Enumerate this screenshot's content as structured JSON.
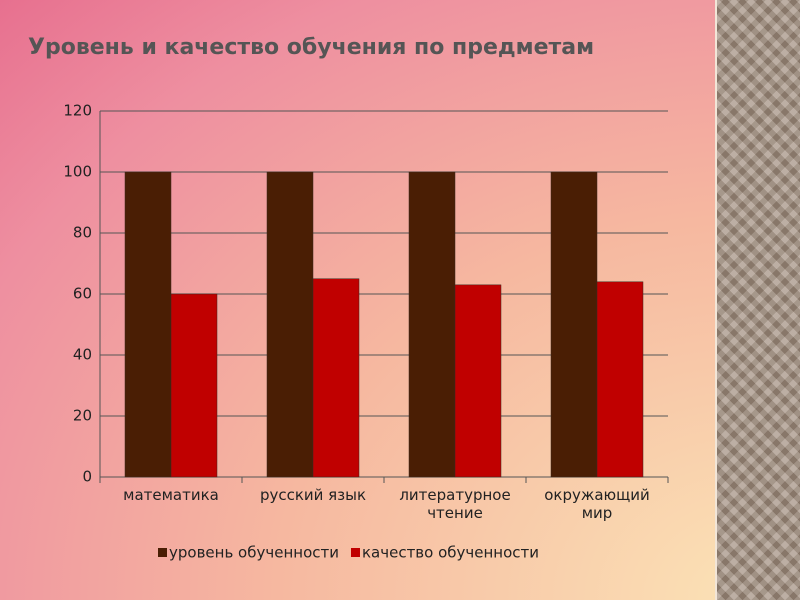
{
  "chart_data": {
    "type": "bar",
    "title": "Уровень и качество обучения по предметам",
    "categories": [
      "математика",
      "русский язык",
      "литературное чтение",
      "окружающий мир"
    ],
    "series": [
      {
        "name": "уровень обученности",
        "color": "#4a1e04",
        "values": [
          100,
          100,
          100,
          100
        ]
      },
      {
        "name": "качество обученности",
        "color": "#c00000",
        "values": [
          60,
          65,
          63,
          64
        ]
      }
    ],
    "ylim": [
      0,
      120
    ],
    "yticks": [
      0,
      20,
      40,
      60,
      80,
      100,
      120
    ],
    "grid": true,
    "legend": "bottom"
  }
}
